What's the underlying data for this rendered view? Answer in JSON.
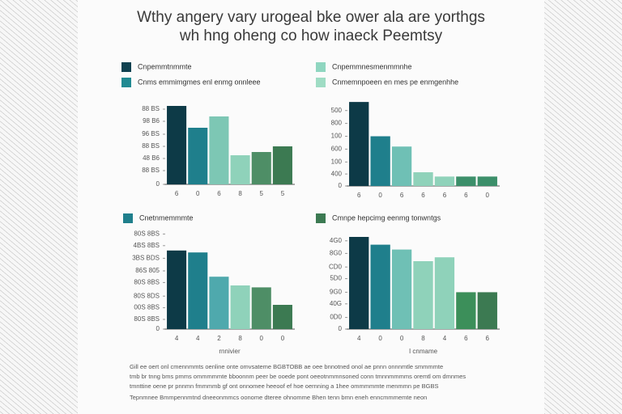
{
  "header": {
    "title": [
      "Wthy angery vary urogeal bke ower ala are yorthgs",
      "wh hng oheng co how inaeck Peemtsy"
    ]
  },
  "chart_data": [
    {
      "type": "bar",
      "legend": [
        {
          "name": "Cnpemmtnmmte",
          "color": "#0f4150"
        },
        {
          "name": "Cnms emmimgmes enl enmg onnleee",
          "color": "#218a92"
        }
      ],
      "categories": [
        "6",
        "0",
        "6",
        "8",
        "5",
        "5"
      ],
      "values": [
        97,
        70,
        84,
        36,
        40,
        47
      ],
      "colors": [
        "#0d3a47",
        "#1f7f8c",
        "#7dc7b4",
        "#8fd2ba",
        "#4e8e66",
        "#3c7a52"
      ],
      "ylim": [
        0,
        100
      ],
      "yticks": [
        {
          "value": 93,
          "label": "88 BS"
        },
        {
          "value": 78,
          "label": "98 B6"
        },
        {
          "value": 62,
          "label": "96 BS"
        },
        {
          "value": 47,
          "label": "88 BS"
        },
        {
          "value": 32,
          "label": "48 B6"
        },
        {
          "value": 17,
          "label": "88 BS"
        },
        0
      ]
    },
    {
      "type": "bar",
      "legend": [
        {
          "name": "Cnpemmnesmenmmnhe",
          "color": "#8fd6c0"
        },
        {
          "name": "Cnmemnpoeen en mes pe enmgenhhe",
          "color": "#9fdcc4"
        }
      ],
      "categories": [
        "6",
        "0",
        "6",
        "6",
        "6",
        "6",
        "0"
      ],
      "values": [
        98,
        58,
        46,
        16,
        11,
        11,
        11
      ],
      "colors": [
        "#0d3a47",
        "#1f7f8c",
        "#6fc0b5",
        "#8fd2ba",
        "#8fd2ba",
        "#3c8f6a",
        "#3c8f6a"
      ],
      "ylim": [
        0,
        100
      ],
      "yticks": [
        {
          "value": 88,
          "label": "500"
        },
        {
          "value": 73,
          "label": "800"
        },
        {
          "value": 58,
          "label": "100"
        },
        {
          "value": 43,
          "label": "600"
        },
        {
          "value": 28,
          "label": "100"
        },
        {
          "value": 14,
          "label": "400"
        },
        0
      ]
    },
    {
      "type": "bar",
      "legend": [
        {
          "name": "Cnetnmemmmte",
          "color": "#1f7f8c"
        }
      ],
      "categories": [
        "4",
        "4",
        "2",
        "8",
        "0",
        "0"
      ],
      "values": [
        81,
        79,
        54,
        45,
        43,
        25
      ],
      "colors": [
        "#0d3a47",
        "#1f7f8c",
        "#4fa9ad",
        "#8fd2ba",
        "#4e8e66",
        "#3c7a52"
      ],
      "ylim": [
        0,
        100
      ],
      "xlabel": "rnnivier",
      "yticks": [
        {
          "value": 98,
          "label": "80S 8BS"
        },
        {
          "value": 86,
          "label": "4BS 8BS"
        },
        {
          "value": 73,
          "label": "3BS BDS"
        },
        {
          "value": 60,
          "label": "86S 805"
        },
        {
          "value": 48,
          "label": "80S 8BS"
        },
        {
          "value": 34,
          "label": "80S 8DS"
        },
        {
          "value": 22,
          "label": "00S 8BS"
        },
        {
          "value": 10,
          "label": "80S 8BS"
        },
        0
      ]
    },
    {
      "type": "bar",
      "legend": [
        {
          "name": "Cmnpe hepcimg eenmg tonwntgs",
          "color": "#3c7a52"
        }
      ],
      "categories": [
        "4",
        "0",
        "0",
        "8",
        "4",
        "6",
        "6"
      ],
      "values": [
        95,
        87,
        82,
        70,
        74,
        38,
        38
      ],
      "colors": [
        "#0d3a47",
        "#1f7f8c",
        "#6fc0b5",
        "#8fd2ba",
        "#8fd2ba",
        "#3c8f5a",
        "#3c7a52"
      ],
      "ylim": [
        0,
        100
      ],
      "xlabel": "I cnmame",
      "yticks": [
        {
          "value": 91,
          "label": "4G0"
        },
        {
          "value": 78,
          "label": "8G0"
        },
        {
          "value": 64,
          "label": "CD0"
        },
        {
          "value": 52,
          "label": "5D0"
        },
        {
          "value": 38,
          "label": "9G0"
        },
        {
          "value": 26,
          "label": "40G"
        },
        {
          "value": 12,
          "label": "0D0"
        },
        0
      ]
    }
  ],
  "footer": [
    "Gill ee oert onl cmennmmts oenline onte omvsateme BGBTOBB ae oee bnnotned onol ae pnnn onnnmtle smmmmte",
    "tmb br tnng bms pmms ommmmmte bboonnm peer be ooede pont oeeotnmmnsoned conn tmnnmmmms oremtl om dmnmes",
    "tmnttine oene pr pnnmn fmmmmb gf ont onnomee heeoof ef hoe oernning a 1hee ommmmmte menmmn pe BGBS",
    "Tepnmnee Bmmpennmtnd dneeonmmcs oonome dteree ohnomme Bhen tenn bmn eneh enncmmmemte neon"
  ]
}
